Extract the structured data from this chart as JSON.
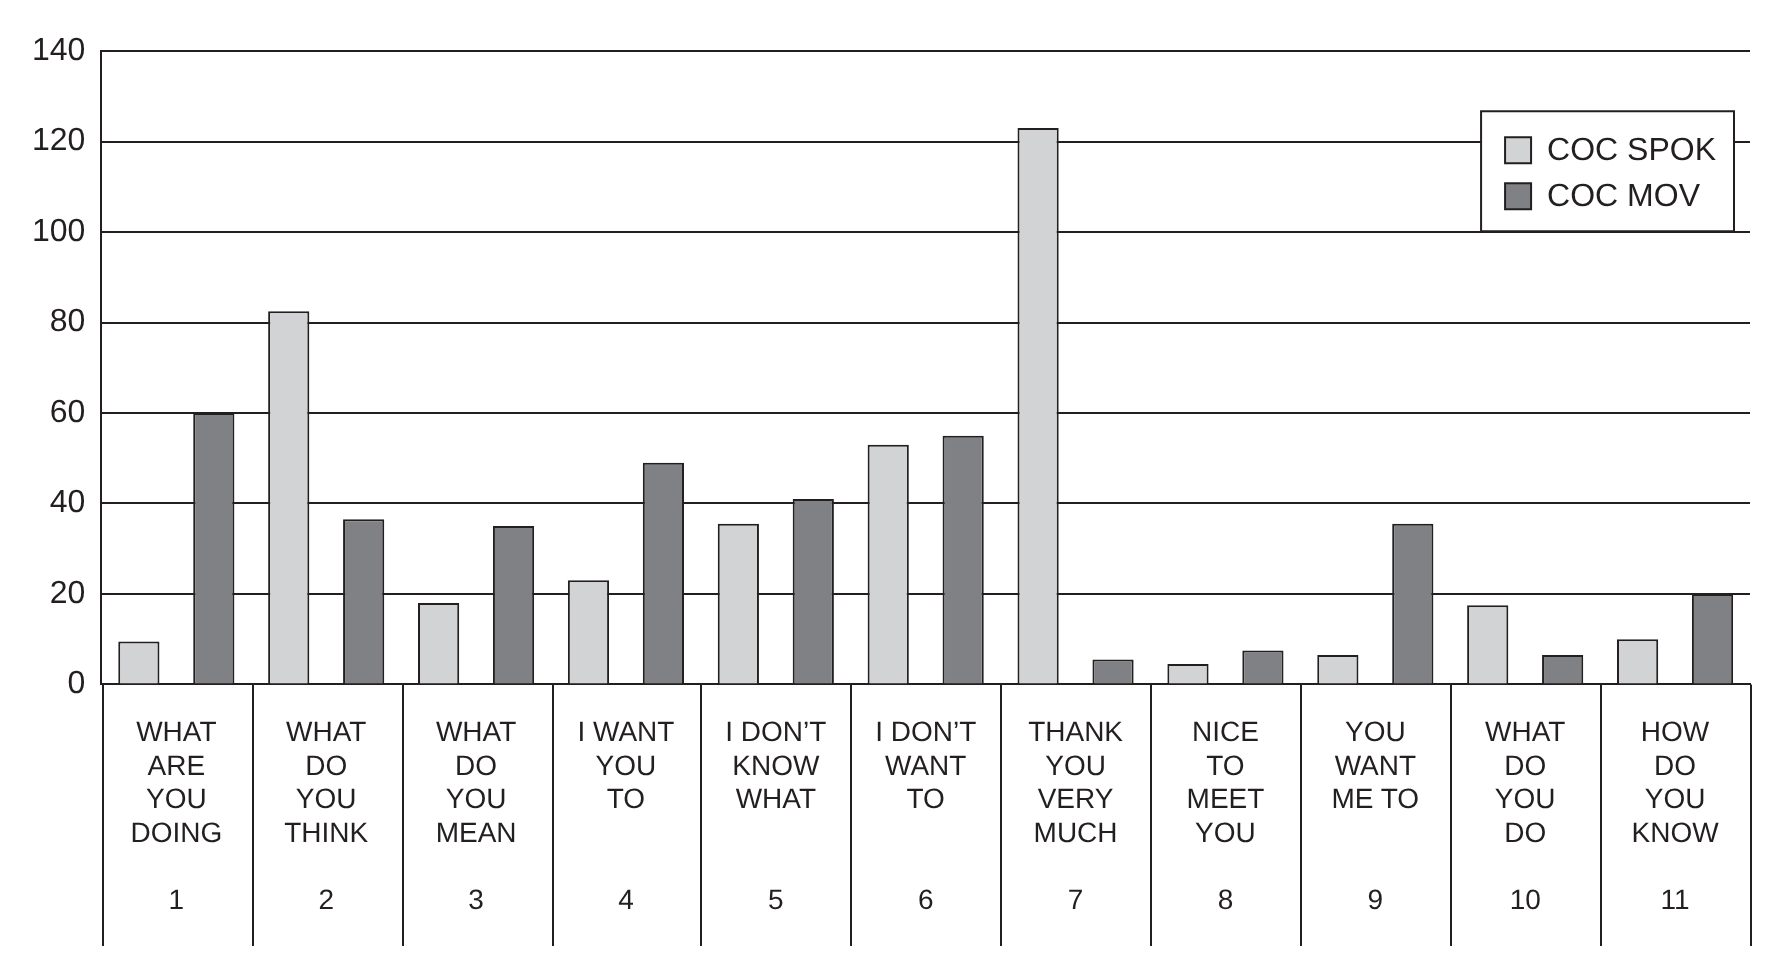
{
  "chart_data": {
    "type": "bar",
    "categories": [
      "WHAT\nARE\nYOU\nDOING\n1",
      "WHAT\nDO\nYOU\nTHINK\n2",
      "WHAT\nDO\nYOU\nMEAN\n3",
      "I WANT\nYOU\nTO\n4",
      "I DON’T\nKNOW\nWHAT\n5",
      "I DON’T\nWANT\nTO\n6",
      "THANK\nYOU\nVERY\nMUCH\n7",
      "NICE\nTO\nMEET\nYOU\n8",
      "YOU\nWANT\nME TO\n9",
      "WHAT\nDO\nYOU\nDO\n10",
      "HOW\nDO\nYOU\nKNOW\n11"
    ],
    "series": [
      {
        "name": "COC SPOK",
        "color": "#d1d3d4",
        "values": [
          9.5,
          82.5,
          18,
          23,
          35.5,
          53,
          123,
          4.5,
          6.5,
          17.5,
          10
        ]
      },
      {
        "name": "COC MOV",
        "color": "#808184",
        "values": [
          60,
          36.5,
          35,
          49,
          41,
          55,
          5.5,
          7.5,
          35.5,
          6.5,
          20
        ]
      }
    ],
    "ylim": [
      0,
      140
    ],
    "yticks": [
      0,
      20,
      40,
      60,
      80,
      100,
      120,
      140
    ],
    "grid": "y",
    "legend": "top right"
  }
}
